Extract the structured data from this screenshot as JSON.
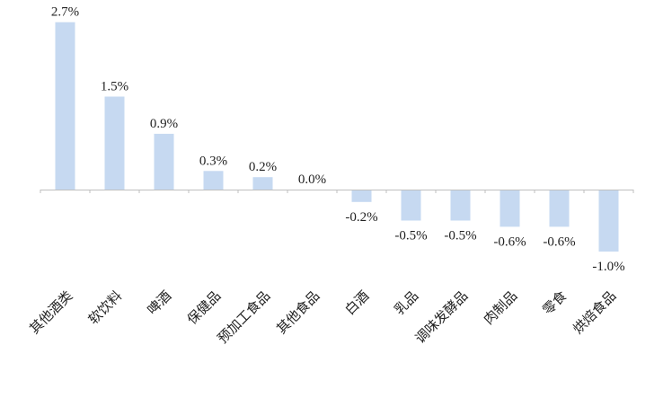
{
  "chart_data": {
    "type": "bar",
    "title": "",
    "xlabel": "",
    "ylabel": "",
    "categories": [
      "其他酒类",
      "软饮料",
      "啤酒",
      "保健品",
      "预加工食品",
      "其他食品",
      "白酒",
      "乳品",
      "调味发酵品",
      "肉制品",
      "零食",
      "烘焙食品"
    ],
    "values": [
      2.7,
      1.5,
      0.9,
      0.3,
      0.2,
      0.0,
      -0.2,
      -0.5,
      -0.5,
      -0.6,
      -0.6,
      -1.0
    ],
    "data_labels": [
      "2.7%",
      "1.5%",
      "0.9%",
      "0.3%",
      "0.2%",
      "0.0%",
      "-0.2%",
      "-0.5%",
      "-0.5%",
      "-0.6%",
      "-0.6%",
      "-1.0%"
    ],
    "unit": "%",
    "ylim": [
      -1.0,
      2.7
    ],
    "grid": false,
    "legend": "none",
    "colors": {
      "bar": "#c6d9f1",
      "axis": "#bfbfbf",
      "text": "#222222"
    }
  }
}
